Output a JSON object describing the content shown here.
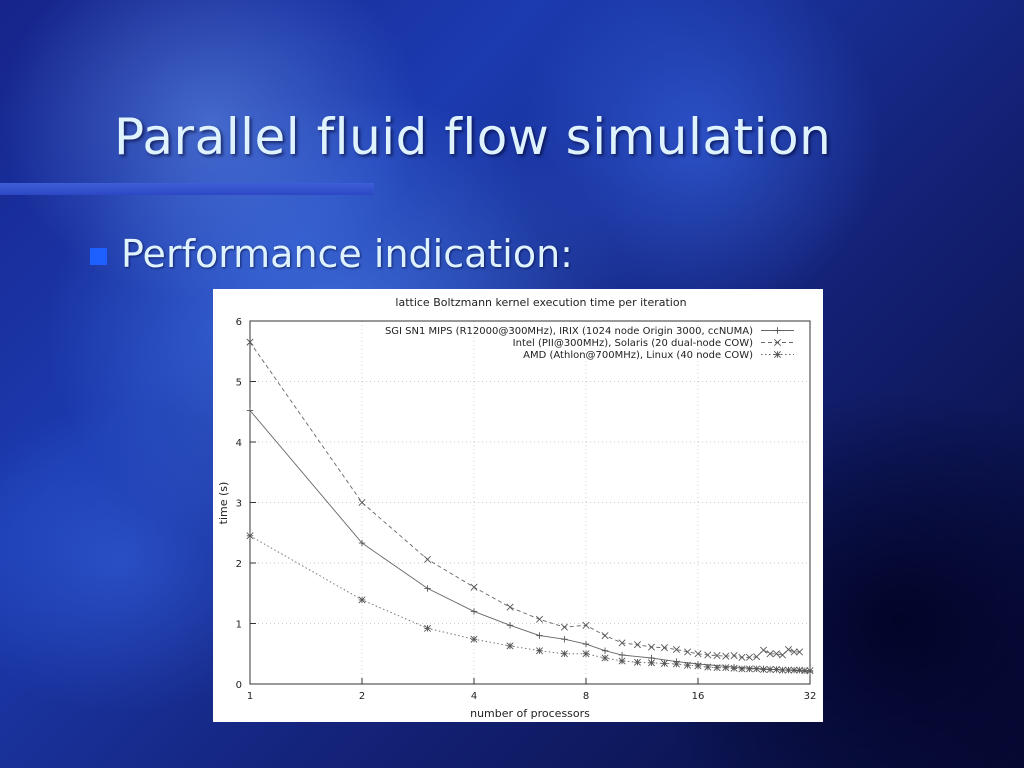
{
  "slide": {
    "title": "Parallel fluid flow simulation",
    "bullet": "Performance indication:"
  },
  "colors": {
    "title_text": "#dff3ff",
    "bullet_marker": "#1e5fff",
    "rule": "#3e5fd8"
  },
  "chart_data": {
    "type": "line",
    "title": "lattice Boltzmann kernel execution time per iteration",
    "xlabel": "number of processors",
    "ylabel": "time (s)",
    "xscale": "log2",
    "xlim": [
      1,
      32
    ],
    "ylim": [
      0,
      6
    ],
    "xticks": [
      1,
      2,
      4,
      8,
      16,
      32
    ],
    "yticks": [
      0,
      1,
      2,
      3,
      4,
      5,
      6
    ],
    "grid": true,
    "legend_position": "top-right",
    "series": [
      {
        "name": "SGI SN1 MIPS (R12000@300MHz), IRIX (1024 node Origin 3000, ccNUMA)",
        "marker": "plus",
        "dash": "solid",
        "x": [
          1,
          2,
          3,
          4,
          5,
          6,
          7,
          8,
          9,
          10,
          12,
          14,
          16,
          20,
          24,
          28,
          32
        ],
        "y": [
          4.52,
          2.33,
          1.58,
          1.2,
          0.97,
          0.8,
          0.74,
          0.66,
          0.55,
          0.48,
          0.43,
          0.37,
          0.33,
          0.28,
          0.25,
          0.23,
          0.2
        ]
      },
      {
        "name": "Intel (PII@300MHz), Solaris (20 dual-node COW)",
        "marker": "cross",
        "dash": "dashed",
        "x": [
          1,
          2,
          3,
          4,
          5,
          6,
          7,
          8,
          9,
          10,
          11,
          12,
          13,
          14,
          15,
          16,
          17,
          18,
          19,
          20,
          21,
          22,
          23,
          24,
          25,
          26,
          27,
          28,
          29,
          30
        ],
        "y": [
          5.65,
          3.0,
          2.06,
          1.6,
          1.27,
          1.07,
          0.94,
          0.97,
          0.8,
          0.68,
          0.65,
          0.61,
          0.6,
          0.57,
          0.53,
          0.5,
          0.48,
          0.47,
          0.46,
          0.47,
          0.44,
          0.44,
          0.45,
          0.56,
          0.5,
          0.5,
          0.48,
          0.57,
          0.53,
          0.53
        ]
      },
      {
        "name": "AMD (Athlon@700MHz), Linux (40 node COW)",
        "marker": "star",
        "dash": "dotted",
        "x": [
          1,
          2,
          3,
          4,
          5,
          6,
          7,
          8,
          9,
          10,
          11,
          12,
          13,
          14,
          15,
          16,
          17,
          18,
          19,
          20,
          21,
          22,
          23,
          24,
          25,
          26,
          27,
          28,
          29,
          30,
          31,
          32
        ],
        "y": [
          2.45,
          1.39,
          0.92,
          0.74,
          0.63,
          0.55,
          0.5,
          0.5,
          0.43,
          0.38,
          0.36,
          0.35,
          0.34,
          0.33,
          0.31,
          0.3,
          0.28,
          0.27,
          0.27,
          0.26,
          0.25,
          0.25,
          0.25,
          0.24,
          0.24,
          0.24,
          0.23,
          0.23,
          0.23,
          0.23,
          0.22,
          0.22
        ]
      }
    ]
  }
}
